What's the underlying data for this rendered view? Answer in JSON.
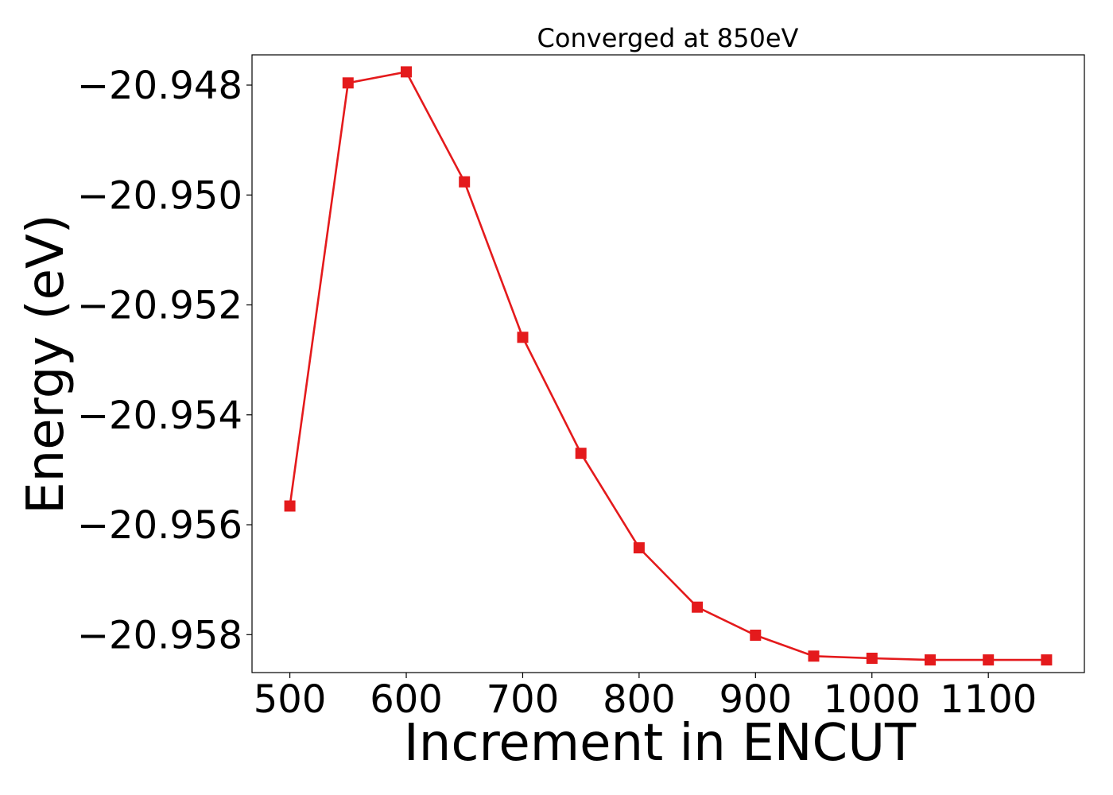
{
  "chart_data": {
    "type": "line",
    "title": "Converged at 850eV",
    "xlabel": "Increment in ENCUT",
    "ylabel": "Energy (eV)",
    "x": [
      500,
      550,
      600,
      650,
      700,
      750,
      800,
      850,
      900,
      950,
      1000,
      1050,
      1100,
      1150
    ],
    "series": [
      {
        "values": [
          -20.95566,
          -20.94796,
          -20.94776,
          -20.94976,
          -20.95259,
          -20.9547,
          -20.95642,
          -20.9575,
          -20.95801,
          -20.95839,
          -20.95843,
          -20.95846,
          -20.95846,
          -20.95846
        ],
        "color": "#e41a1c",
        "marker": "square"
      }
    ],
    "xticks": [
      500,
      600,
      700,
      800,
      900,
      1000,
      1100
    ],
    "xtick_labels": [
      "500",
      "600",
      "700",
      "800",
      "900",
      "1000",
      "1100"
    ],
    "yticks": [
      -20.948,
      -20.95,
      -20.952,
      -20.954,
      -20.956,
      -20.958
    ],
    "ytick_labels": [
      "−20.948",
      "−20.950",
      "−20.952",
      "−20.954",
      "−20.956",
      "−20.958"
    ],
    "xlim": [
      467.5,
      1182.5
    ],
    "ylim": [
      -20.95869,
      -20.94745
    ],
    "grid": false,
    "legend": "none"
  }
}
